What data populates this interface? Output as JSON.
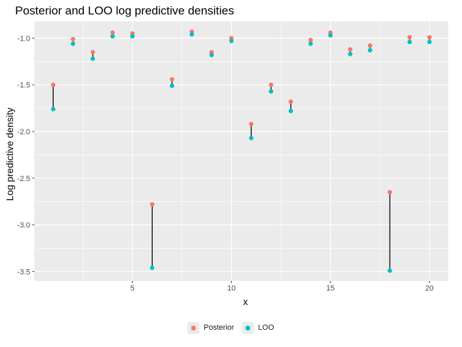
{
  "chart_data": {
    "type": "scatter",
    "title": "Posterior and LOO log predictive densities",
    "xlabel": "x",
    "ylabel": "Log predictive density",
    "xlim": [
      0.05,
      20.95
    ],
    "ylim": [
      -3.6,
      -0.82
    ],
    "x_ticks": [
      5,
      10,
      15,
      20
    ],
    "x_tick_labels": [
      "5",
      "10",
      "15",
      "20"
    ],
    "y_ticks": [
      -3.5,
      -3.0,
      -2.5,
      -2.0,
      -1.5,
      -1.0
    ],
    "y_tick_labels": [
      "-3.5",
      "-3.0",
      "-2.5",
      "-2.0",
      "-1.5",
      "-1.0"
    ],
    "grid": true,
    "legend_position": "bottom",
    "x": [
      1,
      2,
      3,
      4,
      5,
      6,
      7,
      8,
      9,
      10,
      11,
      12,
      13,
      14,
      15,
      16,
      17,
      18,
      19,
      20
    ],
    "series": [
      {
        "name": "Posterior",
        "color": "#F8766D",
        "values": [
          -1.5,
          -1.01,
          -1.15,
          -0.94,
          -0.95,
          -2.78,
          -1.44,
          -0.93,
          -1.15,
          -1.0,
          -1.92,
          -1.5,
          -1.68,
          -1.02,
          -0.94,
          -1.12,
          -1.08,
          -2.65,
          -0.99,
          -0.99
        ]
      },
      {
        "name": "LOO",
        "color": "#00BFC4",
        "values": [
          -1.76,
          -1.06,
          -1.22,
          -0.98,
          -0.98,
          -3.46,
          -1.51,
          -0.96,
          -1.18,
          -1.03,
          -2.07,
          -1.57,
          -1.78,
          -1.06,
          -0.97,
          -1.17,
          -1.13,
          -3.49,
          -1.04,
          -1.04
        ]
      }
    ]
  }
}
